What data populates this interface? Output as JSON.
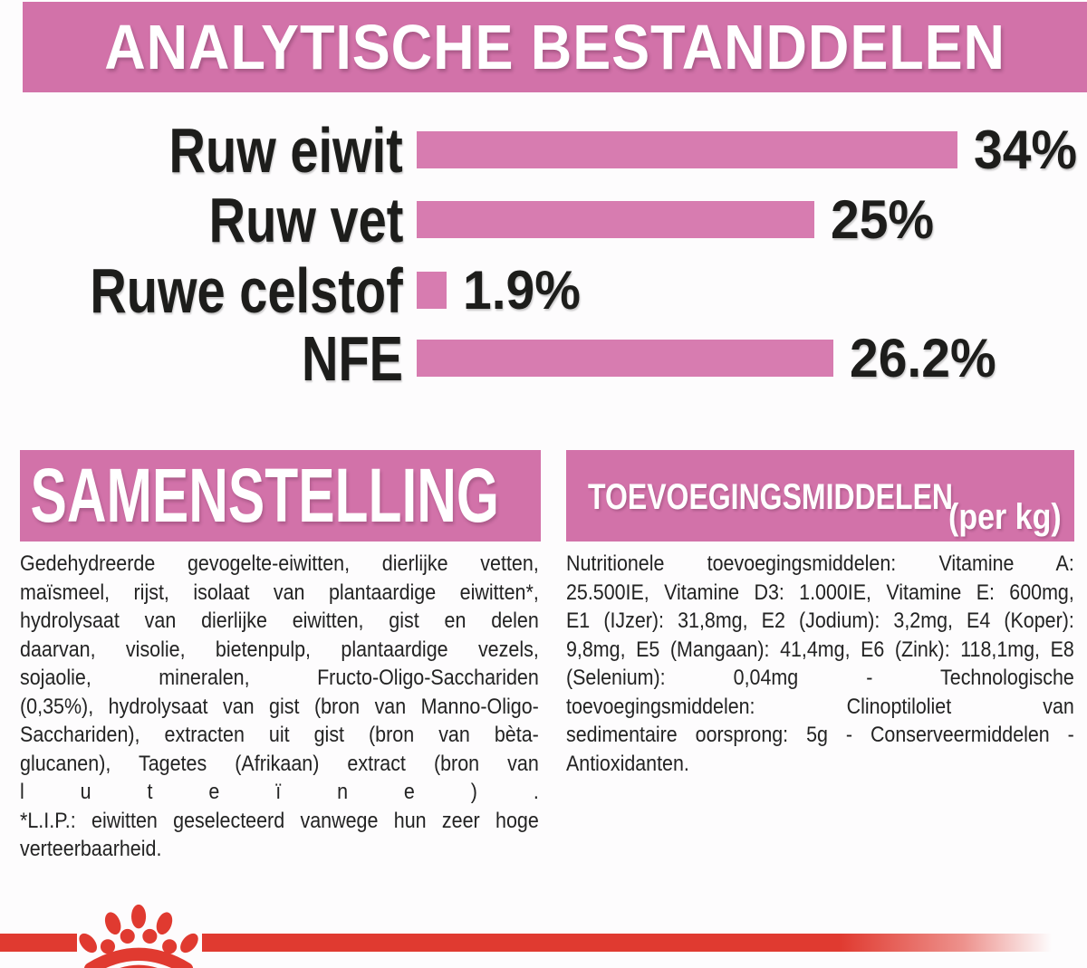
{
  "title": "ANALYTISCHE BESTANDDELEN",
  "chart_data": {
    "type": "bar",
    "orientation": "horizontal",
    "title": "ANALYTISCHE BESTANDDELEN",
    "unit": "%",
    "xlim": [
      0,
      34
    ],
    "categories": [
      "Ruw eiwit",
      "Ruw vet",
      "Ruwe celstof",
      "NFE"
    ],
    "values": [
      34,
      25,
      1.9,
      26.2
    ],
    "value_labels": [
      "34%",
      "25%",
      "1.9%",
      "26.2%"
    ],
    "bar_color": "#d77cb0",
    "grid": false,
    "legend": false
  },
  "composition": {
    "header": "SAMENSTELLING",
    "lines": [
      "Gedehydreerde gevogelte-eiwitten, dierlijke vetten,",
      "maïsmeel, rijst, isolaat van plantaardige eiwitten*,",
      "hydrolysaat van dierlijke eiwitten, gist en delen",
      "daarvan, visolie, bietenpulp, plantaardige vezels,",
      "sojaolie, mineralen, Fructo-Oligo-Sacchariden",
      "(0,35%), hydrolysaat van gist (bron van Manno-Oligo-",
      "Sacchariden), extracten uit gist (bron van bèta-",
      "glucanen), Tagetes (Afrikaan) extract (bron van",
      "l u t e ï n e ) .",
      "*L.I.P.: eiwitten geselecteerd vanwege hun zeer hoge",
      "verteerbaarheid."
    ]
  },
  "additives": {
    "header": "TOEVOEGINGSMIDDELEN",
    "header_suffix": "(per kg)",
    "lines": [
      "Nutritionele toevoegingsmiddelen: Vitamine A:",
      "25.500IE, Vitamine D3: 1.000IE, Vitamine E: 600mg,",
      "E1 (IJzer): 31,8mg, E2 (Jodium): 3,2mg, E4 (Koper):",
      "9,8mg, E5 (Mangaan): 41,4mg, E6 (Zink): 118,1mg, E8",
      "(Selenium): 0,04mg - Technologische",
      "toevoegingsmiddelen: Clinoptiloliet van",
      "sedimentaire oorsprong: 5g - Conserveermiddelen -",
      "Antioxidanten."
    ]
  },
  "colors": {
    "banner_pink": "#d272a9",
    "bar_pink": "#d77cb0",
    "brand_red": "#e03a30",
    "text_dark": "#232323"
  },
  "footer": {
    "logo": "royal-canin-paw-crown"
  }
}
